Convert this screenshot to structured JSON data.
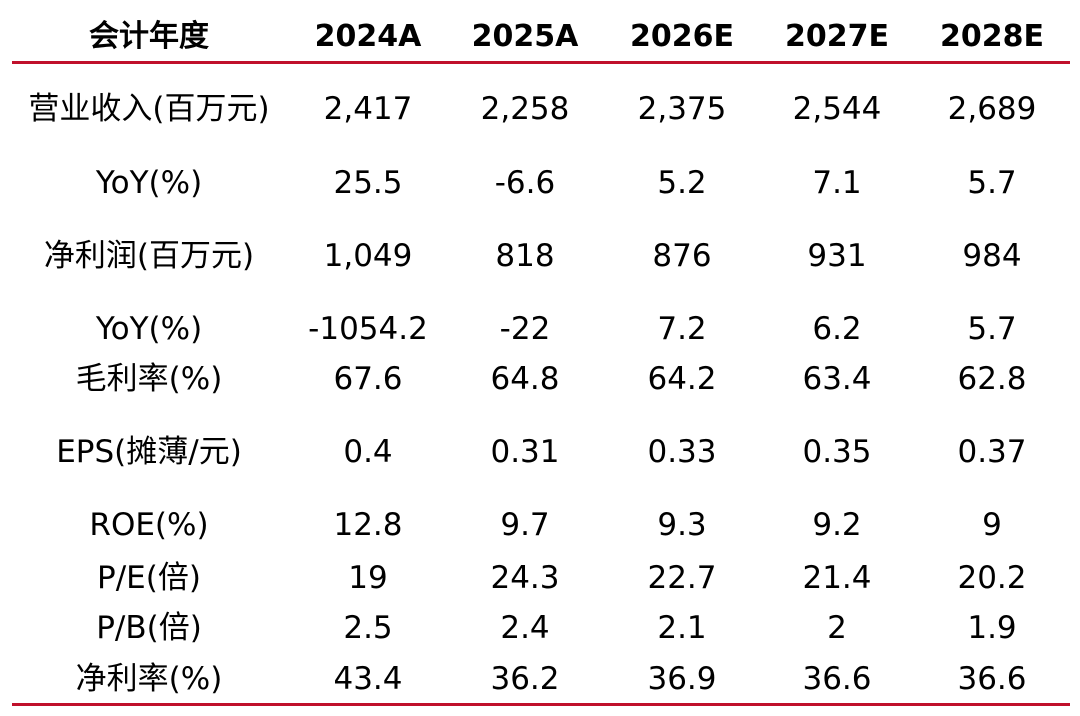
{
  "colors": {
    "rule": "#c0102b",
    "text": "#000000"
  },
  "header": [
    "会计年度",
    "2024A",
    "2025A",
    "2026E",
    "2027E",
    "2028E"
  ],
  "rows": [
    {
      "label": "营业收入(百万元)",
      "values": [
        "2,417",
        "2,258",
        "2,375",
        "2,544",
        "2,689"
      ]
    },
    {
      "label": "YoY(%)",
      "values": [
        "25.5",
        "-6.6",
        "5.2",
        "7.1",
        "5.7"
      ]
    },
    {
      "label": "净利润(百万元)",
      "values": [
        "1,049",
        "818",
        "876",
        "931",
        "984"
      ]
    },
    {
      "label": "YoY(%)",
      "values": [
        "-1054.2",
        "-22",
        "7.2",
        "6.2",
        "5.7"
      ]
    },
    {
      "label": "毛利率(%)",
      "values": [
        "67.6",
        "64.8",
        "64.2",
        "63.4",
        "62.8"
      ]
    },
    {
      "label": "EPS(摊薄/元)",
      "values": [
        "0.4",
        "0.31",
        "0.33",
        "0.35",
        "0.37"
      ]
    },
    {
      "label": "ROE(%)",
      "values": [
        "12.8",
        "9.7",
        "9.3",
        "9.2",
        "9"
      ]
    },
    {
      "label": "P/E(倍)",
      "values": [
        "19",
        "24.3",
        "22.7",
        "21.4",
        "20.2"
      ]
    },
    {
      "label": "P/B(倍)",
      "values": [
        "2.5",
        "2.4",
        "2.1",
        "2",
        "1.9"
      ]
    },
    {
      "label": "净利率(%)",
      "values": [
        "43.4",
        "36.2",
        "36.9",
        "36.6",
        "36.6"
      ]
    }
  ]
}
